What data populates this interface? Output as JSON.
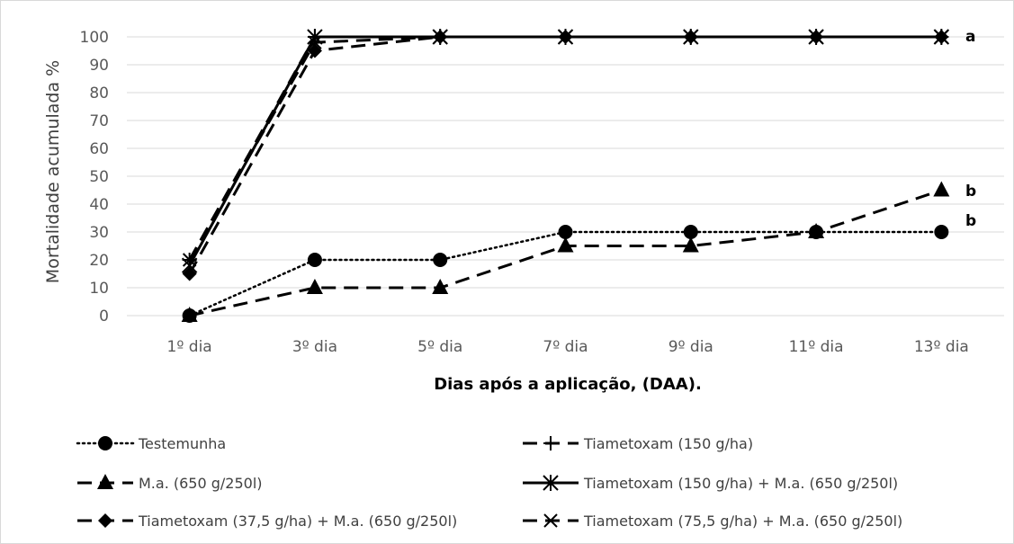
{
  "chart_data": {
    "type": "line",
    "categories": [
      "1º dia",
      "3º dia",
      "5º dia",
      "7º dia",
      "9º dia",
      "11º dia",
      "13º dia"
    ],
    "ylabel": "Mortalidade acumulada %",
    "xlabel": "Dias após a aplicação, (DAA).",
    "ylim": [
      0,
      100
    ],
    "yticks": [
      0,
      10,
      20,
      30,
      40,
      50,
      60,
      70,
      80,
      90,
      100
    ],
    "grid": true,
    "legend_position": "bottom",
    "series": [
      {
        "name": "Testemunha",
        "values": [
          0,
          20,
          20,
          30,
          30,
          30,
          30
        ],
        "marker": "circle",
        "dash": "dotted"
      },
      {
        "name": "Tiametoxam (150 g/ha)",
        "values": [
          20,
          100,
          100,
          100,
          100,
          100,
          100
        ],
        "marker": "plus",
        "dash": "longdash"
      },
      {
        "name": "M.a.  (650 g/250l)",
        "values": [
          0,
          10,
          10,
          25,
          25,
          30,
          45
        ],
        "marker": "triangle",
        "dash": "longdash"
      },
      {
        "name": "Tiametoxam (150 g/ha) + M.a.  (650 g/250l)",
        "values": [
          18,
          100,
          100,
          100,
          100,
          100,
          100
        ],
        "marker": "asterisk",
        "dash": "solid"
      },
      {
        "name": "Tiametoxam (37,5 g/ha) + M.a.  (650 g/250l)",
        "values": [
          15,
          95,
          100,
          100,
          100,
          100,
          100
        ],
        "marker": "diamond",
        "dash": "longdash"
      },
      {
        "name": "Tiametoxam (75,5 g/ha) + M.a.  (650 g/250l)",
        "values": [
          20,
          98,
          100,
          100,
          100,
          100,
          100
        ],
        "marker": "cross",
        "dash": "longdash"
      }
    ],
    "annotations": [
      {
        "text": "a",
        "x": "13º dia",
        "y": 100
      },
      {
        "text": "b",
        "x": "13º dia",
        "y": 45
      },
      {
        "text": "b",
        "x": "13º dia",
        "y": 33
      }
    ]
  }
}
